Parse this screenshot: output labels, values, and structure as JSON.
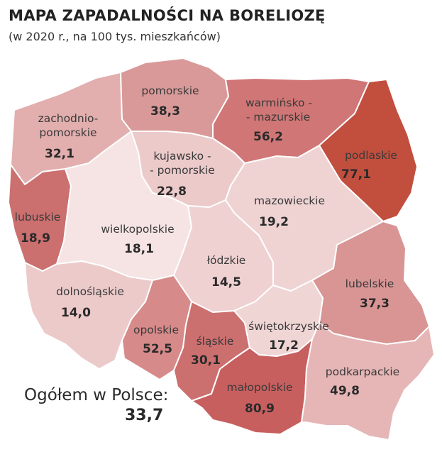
{
  "title": "MAPA ZAPADALNOŚCI NA BORELIOZĘ",
  "subtitle": "(w 2020 r., na 100 tys. mieszkańców)",
  "total": {
    "label": "Ogółem w Polsce:",
    "value": "33,7"
  },
  "regions": {
    "zachodniopomorskie": {
      "name_1": "zachodnio-",
      "name_2": "pomorskie",
      "value": "32,1",
      "color": "#e2aeae"
    },
    "pomorskie": {
      "name_1": "pomorskie",
      "value": "38,3",
      "color": "#d99999"
    },
    "warminsko": {
      "name_1": "warmińsko -",
      "name_2": "- mazurskie",
      "value": "56,2",
      "color": "#d07676"
    },
    "podlaskie": {
      "name_1": "podlaskie",
      "value": "77,1",
      "color": "#c24e3e"
    },
    "kujawsko": {
      "name_1": "kujawsko -",
      "name_2": "- pomorskie",
      "value": "22,8",
      "color": "#eccaca"
    },
    "lubuskie": {
      "name_1": "lubuskie",
      "value": "18,9",
      "color": "#cb6f6f"
    },
    "wielkopolskie": {
      "name_1": "wielkopolskie",
      "value": "18,1",
      "color": "#f6e4e4"
    },
    "mazowieckie": {
      "name_1": "mazowieckie",
      "value": "19,2",
      "color": "#efd3d3"
    },
    "lodzkie": {
      "name_1": "łódzkie",
      "value": "14,5",
      "color": "#efd1d1"
    },
    "lubelskie": {
      "name_1": "lubelskie",
      "value": "37,3",
      "color": "#d99494"
    },
    "dolnoslaskie": {
      "name_1": "dolnośląskie",
      "value": "14,0",
      "color": "#eccaca"
    },
    "opolskie": {
      "name_1": "opolskie",
      "value": "52,5",
      "color": "#d78a8a"
    },
    "slaskie": {
      "name_1": "śląskie",
      "value": "30,1",
      "color": "#cc6f6f"
    },
    "swietokrzyskie": {
      "name_1": "świętokrzyskie",
      "value": "17,2",
      "color": "#f0d5d5"
    },
    "malopolskie": {
      "name_1": "małopolskie",
      "value": "80,9",
      "color": "#c85f5f"
    },
    "podkarpackie": {
      "name_1": "podkarpackie",
      "value": "49,8",
      "color": "#e6b6b6"
    }
  }
}
